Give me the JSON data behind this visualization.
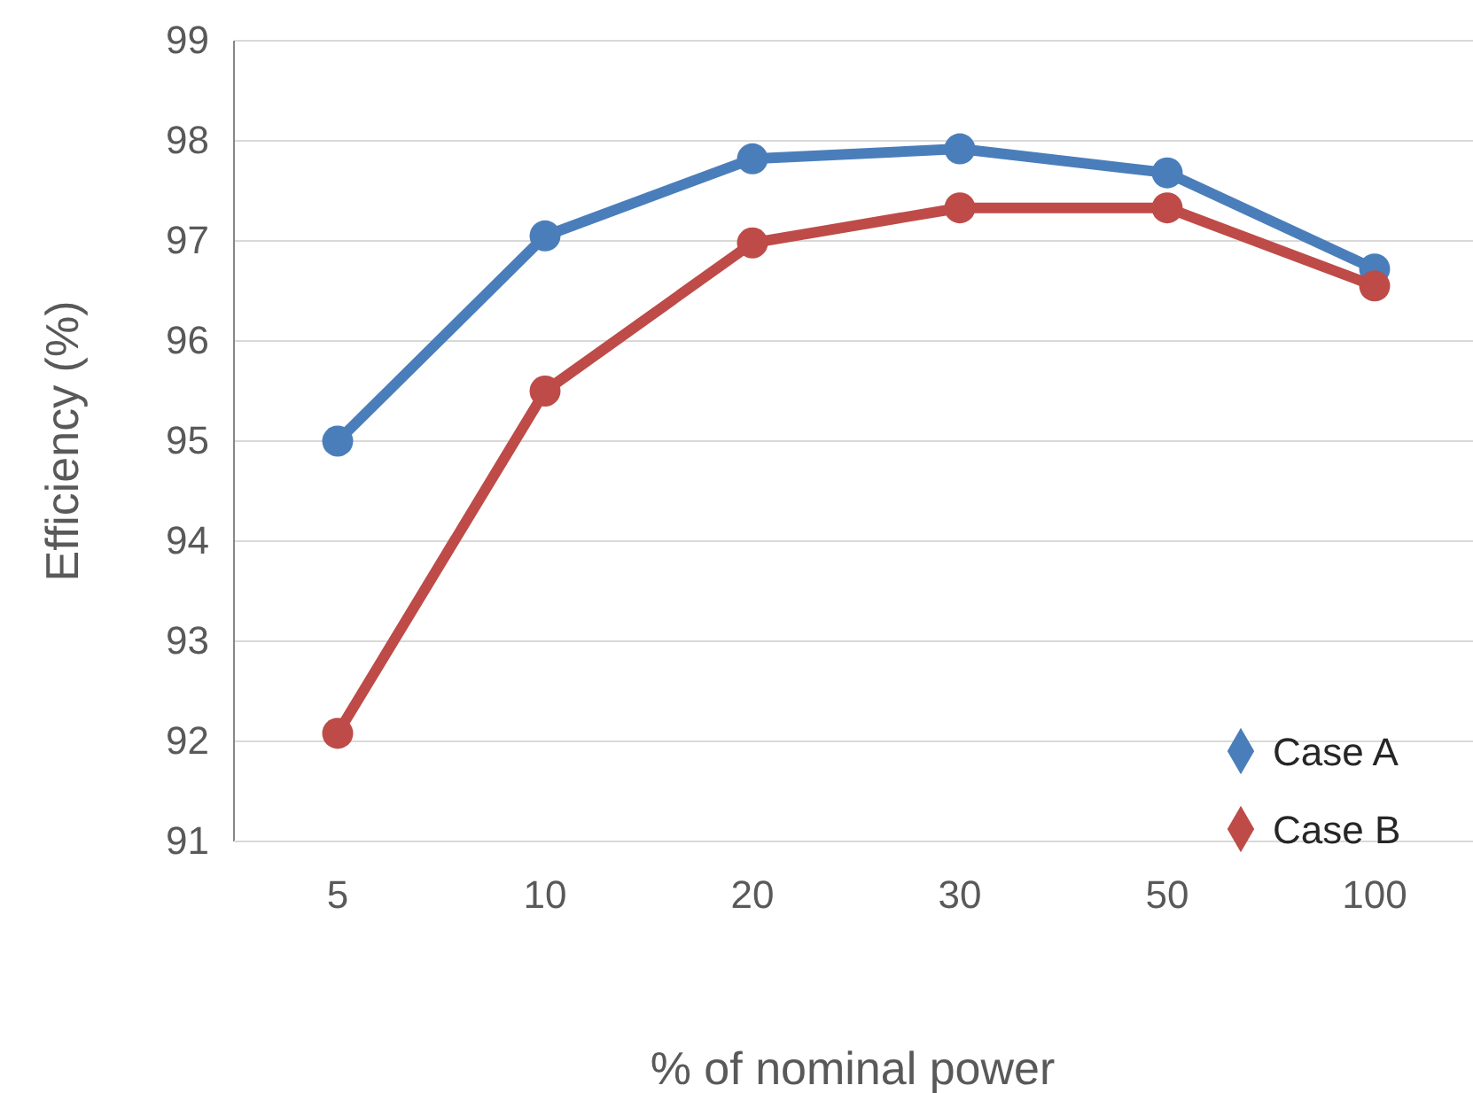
{
  "chart_data": {
    "type": "line",
    "xlabel": "% of nominal power",
    "ylabel": "Efficiency (%)",
    "categories": [
      "5",
      "10",
      "20",
      "30",
      "50",
      "100"
    ],
    "series": [
      {
        "name": "Case A",
        "color": "#4a7ebb",
        "values": [
          95.0,
          97.05,
          97.82,
          97.92,
          97.68,
          96.72
        ]
      },
      {
        "name": "Case B",
        "color": "#be4b48",
        "values": [
          92.08,
          95.5,
          96.98,
          97.33,
          97.33,
          96.55
        ]
      }
    ],
    "ylim": [
      91,
      99
    ],
    "yticks": [
      91,
      92,
      93,
      94,
      95,
      96,
      97,
      98,
      99
    ],
    "grid": "y",
    "legend": "bottom right",
    "marker": "circle",
    "line_style": "solid"
  }
}
